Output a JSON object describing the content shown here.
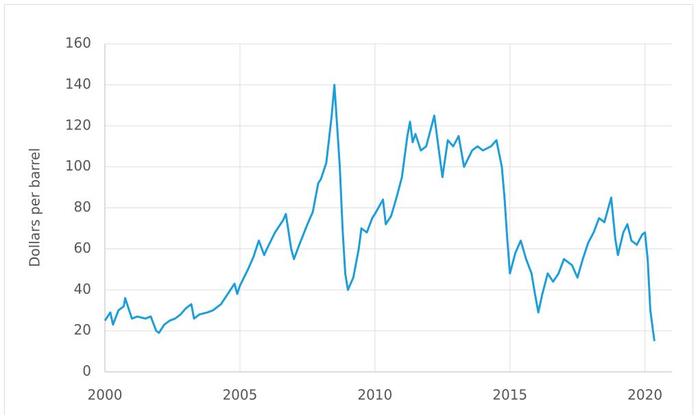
{
  "chart_data": {
    "type": "line",
    "y_label": "Dollars per barrel",
    "x": [
      2000.0,
      2000.2,
      2000.3,
      2000.5,
      2000.7,
      2000.75,
      2000.9,
      2001.0,
      2001.2,
      2001.5,
      2001.7,
      2001.9,
      2002.0,
      2002.2,
      2002.4,
      2002.6,
      2002.8,
      2003.0,
      2003.2,
      2003.3,
      2003.5,
      2003.8,
      2004.0,
      2004.3,
      2004.5,
      2004.8,
      2004.9,
      2005.0,
      2005.3,
      2005.5,
      2005.7,
      2005.9,
      2006.0,
      2006.3,
      2006.6,
      2006.7,
      2006.9,
      2007.0,
      2007.2,
      2007.5,
      2007.7,
      2007.9,
      2008.0,
      2008.2,
      2008.4,
      2008.5,
      2008.55,
      2008.7,
      2008.8,
      2008.9,
      2009.0,
      2009.2,
      2009.4,
      2009.5,
      2009.7,
      2009.9,
      2010.0,
      2010.3,
      2010.4,
      2010.6,
      2010.8,
      2011.0,
      2011.2,
      2011.3,
      2011.4,
      2011.5,
      2011.7,
      2011.9,
      2012.1,
      2012.2,
      2012.4,
      2012.5,
      2012.7,
      2012.9,
      2013.1,
      2013.3,
      2013.6,
      2013.8,
      2014.0,
      2014.3,
      2014.5,
      2014.7,
      2014.8,
      2014.9,
      2015.0,
      2015.2,
      2015.4,
      2015.6,
      2015.8,
      2015.9,
      2016.05,
      2016.2,
      2016.4,
      2016.6,
      2016.8,
      2017.0,
      2017.3,
      2017.5,
      2017.7,
      2017.9,
      2018.1,
      2018.3,
      2018.5,
      2018.75,
      2018.9,
      2019.0,
      2019.2,
      2019.35,
      2019.5,
      2019.7,
      2019.9,
      2020.0,
      2020.1,
      2020.2,
      2020.3,
      2020.35
    ],
    "series": [
      {
        "color": "#1a9fdc",
        "values": [
          25,
          29,
          23,
          30,
          32,
          36,
          30,
          26,
          27,
          26,
          27,
          20,
          19,
          23,
          25,
          26,
          28,
          31,
          33,
          26,
          28,
          29,
          30,
          33,
          37,
          43,
          38,
          42,
          50,
          56,
          64,
          57,
          60,
          68,
          74,
          77,
          60,
          55,
          62,
          72,
          78,
          92,
          94,
          102,
          125,
          140,
          130,
          100,
          70,
          48,
          40,
          46,
          60,
          70,
          68,
          75,
          77,
          84,
          72,
          76,
          85,
          95,
          115,
          122,
          112,
          116,
          108,
          110,
          120,
          125,
          105,
          95,
          113,
          110,
          115,
          100,
          108,
          110,
          108,
          110,
          113,
          100,
          85,
          65,
          48,
          58,
          64,
          55,
          48,
          40,
          29,
          38,
          48,
          44,
          48,
          55,
          52,
          46,
          55,
          63,
          68,
          75,
          73,
          85,
          65,
          57,
          68,
          72,
          64,
          62,
          67,
          68,
          55,
          30,
          20,
          15
        ]
      }
    ],
    "xlim": [
      2000,
      2021
    ],
    "xticks": [
      2000,
      2005,
      2010,
      2015,
      2020
    ],
    "ylim": [
      0,
      160
    ],
    "yticks": [
      0,
      20,
      40,
      60,
      80,
      100,
      120,
      140,
      160
    ],
    "grid": true
  }
}
